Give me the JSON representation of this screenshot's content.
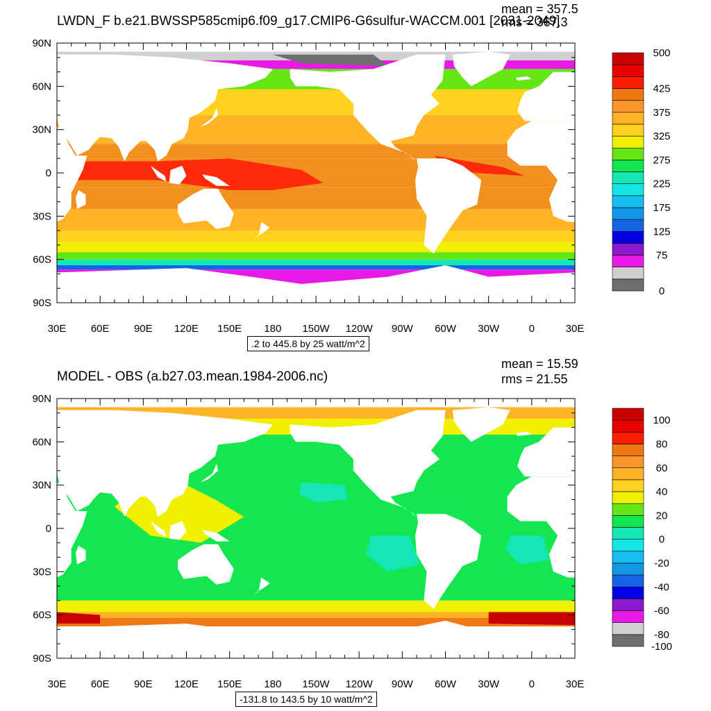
{
  "panels": [
    {
      "id": "top",
      "title": "LWDN_F b.e21.BWSSP585cmip6.f09_g17.CMIP6-G6sulfur-WACCM.001 [2031-2049]",
      "mean_text": "mean = 357.5",
      "rms_text": "rms = 367.3",
      "range_text": ".2 to 445.8 by 25 watt/m^2",
      "colorbar": {
        "colors": [
          "#6e6e6e",
          "#d0d0d0",
          "#e619e6",
          "#8c19cc",
          "#0000e6",
          "#1464e6",
          "#1496e6",
          "#14bef0",
          "#14e6e6",
          "#14e6b4",
          "#14e650",
          "#64e614",
          "#f0f000",
          "#ffd21e",
          "#ffb428",
          "#fa962a",
          "#f07814",
          "#ff1e00",
          "#e60000",
          "#c80000"
        ],
        "labels": [
          {
            "i": 0,
            "text": "0"
          },
          {
            "i": 3,
            "text": "75"
          },
          {
            "i": 5,
            "text": "125"
          },
          {
            "i": 7,
            "text": "175"
          },
          {
            "i": 9,
            "text": "225"
          },
          {
            "i": 11,
            "text": "275"
          },
          {
            "i": 13,
            "text": "325"
          },
          {
            "i": 15,
            "text": "375"
          },
          {
            "i": 17,
            "text": "425"
          },
          {
            "i": 20,
            "text": "500"
          }
        ]
      },
      "fields": {
        "tropical_warm_pool": "#ff2a0a",
        "subtropical": "#f2901e",
        "midlatitude": "#ffb428",
        "temperate": "#ffd21e",
        "subpolar": "#f0f000",
        "polar_front": "#64e614",
        "southern_ice_edge": "#8c19cc",
        "southern_ice": "#e619e6",
        "arctic_ice": "#d0d0d0",
        "arctic_dark": "#6e6e6e",
        "land": "#ffffff"
      }
    },
    {
      "id": "bottom",
      "title": "MODEL - OBS (a.b27.03.mean.1984-2006.nc)",
      "mean_text": "mean = 15.59",
      "rms_text": "rms = 21.55",
      "range_text": "-131.8 to 143.5 by 10 watt/m^2",
      "colorbar": {
        "colors": [
          "#6e6e6e",
          "#d0d0d0",
          "#e619e6",
          "#8c19cc",
          "#0000e6",
          "#1464e6",
          "#1496e6",
          "#14bef0",
          "#14e6e6",
          "#14e6b4",
          "#14e650",
          "#64e614",
          "#f0f000",
          "#ffd21e",
          "#ffb428",
          "#fa962a",
          "#f07814",
          "#ff1e00",
          "#e60000",
          "#c80000"
        ],
        "labels": [
          {
            "i": 0,
            "text": "-100"
          },
          {
            "i": 1,
            "text": "-80"
          },
          {
            "i": 3,
            "text": "-60"
          },
          {
            "i": 5,
            "text": "-40"
          },
          {
            "i": 7,
            "text": "-20"
          },
          {
            "i": 9,
            "text": "0"
          },
          {
            "i": 11,
            "text": "20"
          },
          {
            "i": 13,
            "text": "40"
          },
          {
            "i": 15,
            "text": "60"
          },
          {
            "i": 17,
            "text": "80"
          },
          {
            "i": 19,
            "text": "100"
          }
        ]
      },
      "fields": {
        "ocean_base": "#14e650",
        "bias_positive": "#f0f000",
        "bias_strong": "#ffb428",
        "bias_max": "#c80000",
        "bias_negative": "#14e6b4",
        "land": "#ffffff"
      }
    }
  ],
  "axes": {
    "lat_labels": [
      "90N",
      "60N",
      "30N",
      "0",
      "30S",
      "60S",
      "90S"
    ],
    "lon_labels": [
      "30E",
      "60E",
      "90E",
      "120E",
      "150E",
      "180",
      "150W",
      "120W",
      "90W",
      "60W",
      "30W",
      "0",
      "30E"
    ]
  }
}
